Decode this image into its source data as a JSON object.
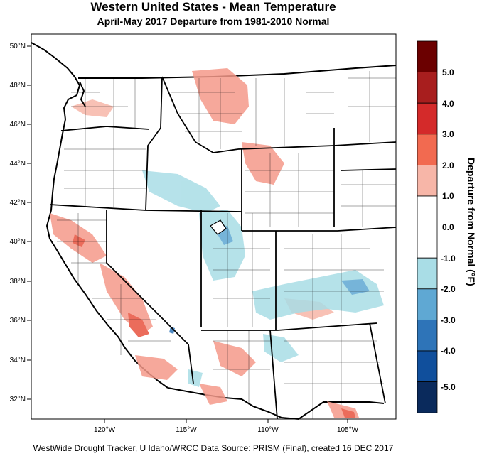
{
  "title": "Western United States - Mean Temperature",
  "subtitle": "April-May 2017  Departure from 1981-2010 Normal",
  "footer": "WestWide Drought Tracker, U Idaho/WRCC Data Source: PRISM (Final), created 16 DEC 2017",
  "latitude_labels": [
    "50°N",
    "48°N",
    "46°N",
    "44°N",
    "42°N",
    "40°N",
    "38°N",
    "36°N",
    "34°N",
    "32°N"
  ],
  "longitude_labels": [
    "120°W",
    "115°W",
    "110°W",
    "105°W"
  ],
  "colorbar": {
    "title": "Departure from Normal (°F)",
    "labels": [
      "5.0",
      "4.0",
      "3.0",
      "2.0",
      "1.0",
      "0.0",
      "-1.0",
      "-2.0",
      "-3.0",
      "-4.0",
      "-5.0"
    ],
    "colors": [
      "#6b0000",
      "#a81e1e",
      "#d42a2a",
      "#f26a50",
      "#f7b6a8",
      "#ffffff",
      "#ffffff",
      "#a9dde6",
      "#5fa8d3",
      "#2e74b8",
      "#104f9c",
      "#0a2a5c"
    ]
  },
  "colors": {
    "warm": "#f5998a",
    "warm_strong": "#e8533f",
    "cool": "#a9dde6",
    "cool_strong": "#5fa8d3",
    "land": "#ffffff",
    "border": "#000000"
  }
}
